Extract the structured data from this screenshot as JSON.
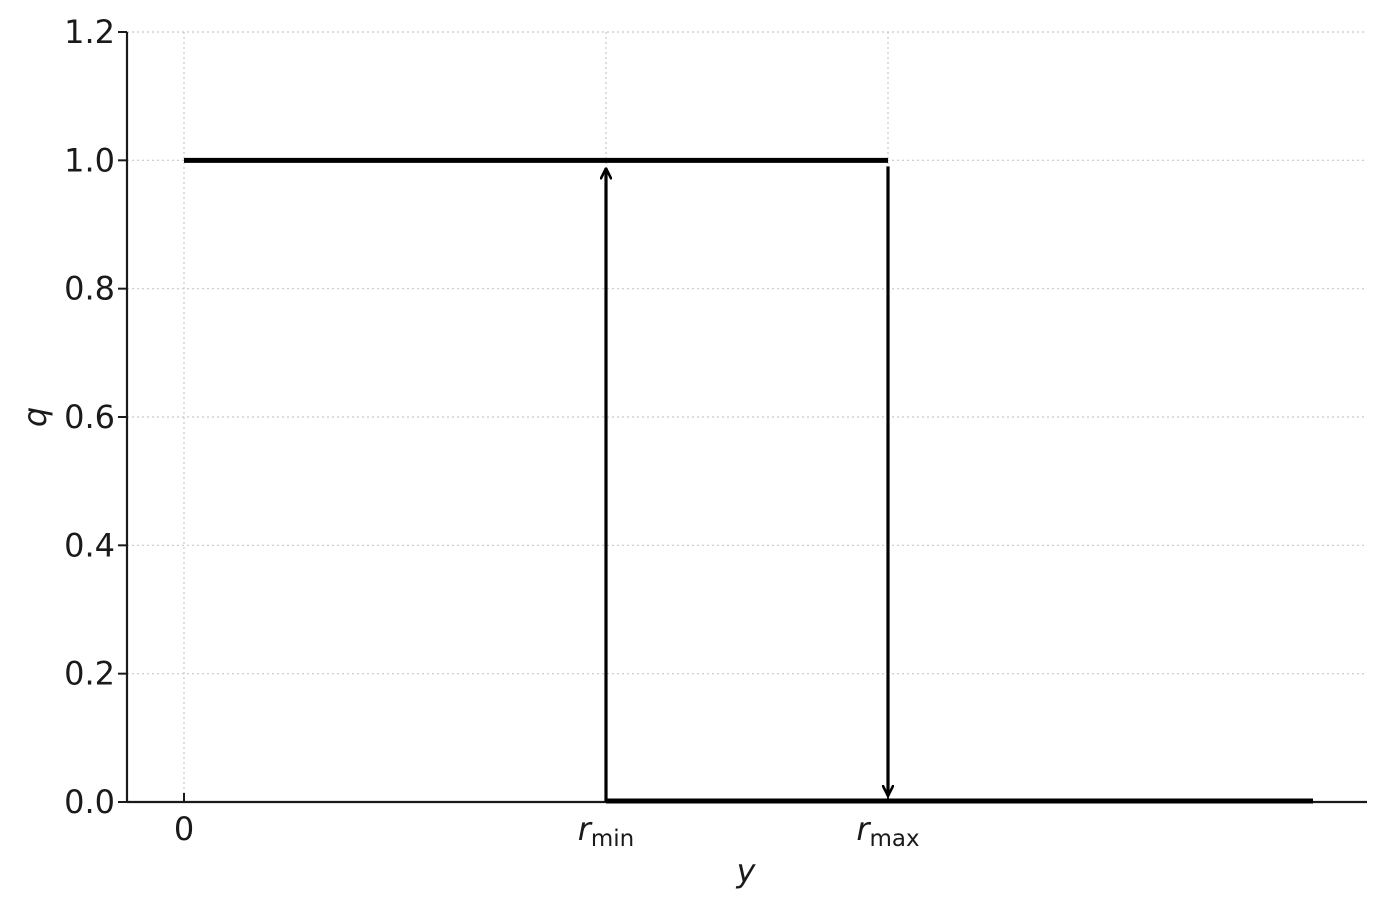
{
  "chart_data": {
    "type": "line",
    "xlabel": "y",
    "ylabel": "q",
    "ylim": [
      0,
      1.2
    ],
    "y_ticks": [
      "0.0",
      "0.2",
      "0.4",
      "0.6",
      "0.8",
      "1.0",
      "1.2"
    ],
    "x_ticks": [
      {
        "key": "zero",
        "main": "0",
        "sub": ""
      },
      {
        "key": "rmin",
        "main": "r",
        "sub": "min"
      },
      {
        "key": "rmax",
        "main": "r",
        "sub": "max"
      }
    ],
    "grid": true,
    "series": [
      {
        "segment": "upper-branch",
        "from": "zero",
        "to": "rmax",
        "q": 1.0
      },
      {
        "segment": "lower-branch",
        "from": "rmin",
        "to": "end",
        "q": 0.0
      }
    ],
    "transitions": [
      {
        "at": "rmin",
        "from_q": 0.0,
        "to_q": 1.0,
        "direction": "up"
      },
      {
        "at": "rmax",
        "from_q": 1.0,
        "to_q": 0.0,
        "direction": "down"
      }
    ]
  }
}
